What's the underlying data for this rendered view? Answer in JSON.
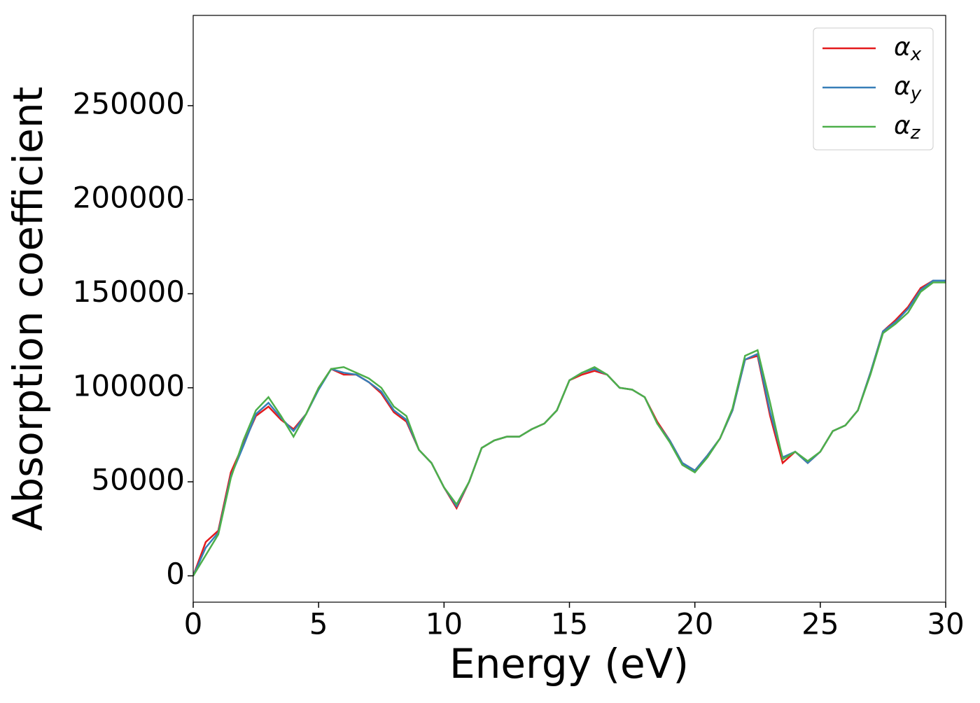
{
  "chart_data": {
    "type": "line",
    "xlabel": "Energy (eV)",
    "ylabel": "Absorption coefficient",
    "x": [
      0,
      0.5,
      1,
      1.5,
      2,
      2.5,
      3,
      3.5,
      4,
      4.5,
      5,
      5.5,
      6,
      6.5,
      7,
      7.5,
      8,
      8.5,
      9,
      9.5,
      10,
      10.5,
      11,
      11.5,
      12,
      12.5,
      13,
      13.5,
      14,
      14.5,
      15,
      15.5,
      16,
      16.5,
      17,
      17.5,
      18,
      18.5,
      19,
      19.5,
      20,
      20.5,
      21,
      21.5,
      22,
      22.5,
      23,
      23.5,
      24,
      24.5,
      25,
      25.5,
      26,
      26.5,
      27,
      27.5,
      28,
      28.5,
      29,
      29.5,
      30
    ],
    "series": [
      {
        "name": "αx",
        "color": "#e41a1c",
        "values": [
          0,
          18000,
          24000,
          55000,
          70000,
          85000,
          90000,
          83000,
          78000,
          86000,
          100000,
          110000,
          107000,
          107000,
          103000,
          97000,
          87000,
          82000,
          67000,
          60000,
          47000,
          36000,
          50000,
          68000,
          72000,
          74000,
          74000,
          78000,
          81000,
          88000,
          104000,
          107000,
          109000,
          107000,
          100000,
          99000,
          95000,
          82000,
          72000,
          60000,
          56000,
          64000,
          73000,
          88000,
          115000,
          117000,
          85000,
          60000,
          66000,
          60000,
          66000,
          77000,
          80000,
          88000,
          108000,
          130000,
          136000,
          143000,
          153000,
          157000,
          157000
        ]
      },
      {
        "name": "αy",
        "color": "#377eb8",
        "values": [
          0,
          15000,
          23000,
          53000,
          69000,
          86000,
          92000,
          84000,
          77000,
          86000,
          99000,
          110000,
          108000,
          107000,
          103000,
          98000,
          88000,
          83000,
          67000,
          60000,
          47000,
          37000,
          50000,
          68000,
          72000,
          74000,
          74000,
          78000,
          81000,
          88000,
          104000,
          108000,
          110000,
          107000,
          100000,
          99000,
          95000,
          81000,
          72000,
          60000,
          56000,
          64000,
          73000,
          88000,
          115000,
          118000,
          87000,
          63000,
          66000,
          60000,
          66000,
          77000,
          80000,
          88000,
          108000,
          130000,
          135000,
          142000,
          152000,
          157000,
          157000
        ]
      },
      {
        "name": "αz",
        "color": "#4daf4a",
        "values": [
          0,
          11000,
          22000,
          52000,
          72000,
          88000,
          95000,
          85000,
          74000,
          86000,
          100000,
          110000,
          111000,
          108000,
          105000,
          100000,
          90000,
          85000,
          67000,
          60000,
          47000,
          38000,
          50000,
          68000,
          72000,
          74000,
          74000,
          78000,
          81000,
          88000,
          104000,
          108000,
          111000,
          107000,
          100000,
          99000,
          95000,
          81000,
          71000,
          59000,
          55000,
          63000,
          73000,
          89000,
          117000,
          120000,
          92000,
          62000,
          66000,
          61000,
          66000,
          77000,
          80000,
          88000,
          107000,
          129000,
          134000,
          140000,
          151000,
          156000,
          156000
        ]
      }
    ],
    "xlim": [
      0,
      30
    ],
    "xticks": [
      0,
      5,
      10,
      15,
      20,
      25,
      30
    ],
    "ylim": [
      -14000,
      298000
    ],
    "yticks": [
      0,
      50000,
      100000,
      150000,
      200000,
      250000
    ],
    "legend": "upper right"
  }
}
